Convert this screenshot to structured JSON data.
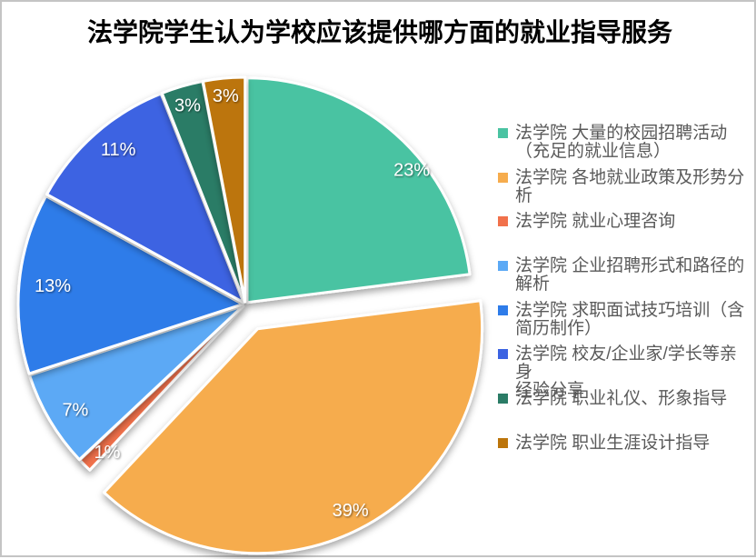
{
  "title": "法学院学生认为学校应该提供哪方面的就业指导服务",
  "frame": {
    "background_color": "#ffffff",
    "border_color": "#c4c4c4"
  },
  "legend_text_color": "#595959",
  "chart_data": {
    "type": "pie",
    "title": "法学院学生认为学校应该提供哪方面的就业指导服务",
    "legend_position": "right",
    "value_unit": "%",
    "start_angle_deg": 0,
    "items": [
      {
        "label": "法学院 大量的校园招聘活动（充足的就业信息）",
        "label_lines": [
          "法学院 大量的校园招聘活动",
          "（充足的就业信息）"
        ],
        "value": 23,
        "percent_label": "23%",
        "color": "#4AC3A2",
        "exploded": false
      },
      {
        "label": "法学院 各地就业政策及形势分析",
        "label_lines": [
          "法学院 各地就业政策及形势分",
          "析"
        ],
        "value": 39,
        "percent_label": "39%",
        "color": "#F6AC4D",
        "exploded": true
      },
      {
        "label": "法学院 就业心理咨询",
        "label_lines": [
          "法学院 就业心理咨询"
        ],
        "value": 1,
        "percent_label": "1%",
        "color": "#F1714B",
        "exploded": false
      },
      {
        "label": "法学院 企业招聘形式和路径的解析",
        "label_lines": [
          "法学院 企业招聘形式和路径的",
          "解析"
        ],
        "value": 7,
        "percent_label": "7%",
        "color": "#5BA9F5",
        "exploded": false
      },
      {
        "label": "法学院 求职面试技巧培训（含简历制作）",
        "label_lines": [
          "法学院 求职面试技巧培训（含",
          "简历制作）"
        ],
        "value": 13,
        "percent_label": "13%",
        "color": "#2E7CE9",
        "exploded": false
      },
      {
        "label": "法学院 校友/企业家/学长等亲身经验分享",
        "label_lines": [
          "法学院 校友/企业家/学长等亲身",
          "经验分享"
        ],
        "value": 11,
        "percent_label": "11%",
        "color": "#3C63E2",
        "exploded": false
      },
      {
        "label": "法学院 职业礼仪、形象指导",
        "label_lines": [
          "法学院 职业礼仪、形象指导"
        ],
        "value": 3,
        "percent_label": "3%",
        "color": "#2B7C66",
        "exploded": false
      },
      {
        "label": "法学院 职业生涯设计指导",
        "label_lines": [
          "法学院 职业生涯设计指导"
        ],
        "value": 3,
        "percent_label": "3%",
        "color": "#BC750B",
        "exploded": false
      }
    ]
  }
}
